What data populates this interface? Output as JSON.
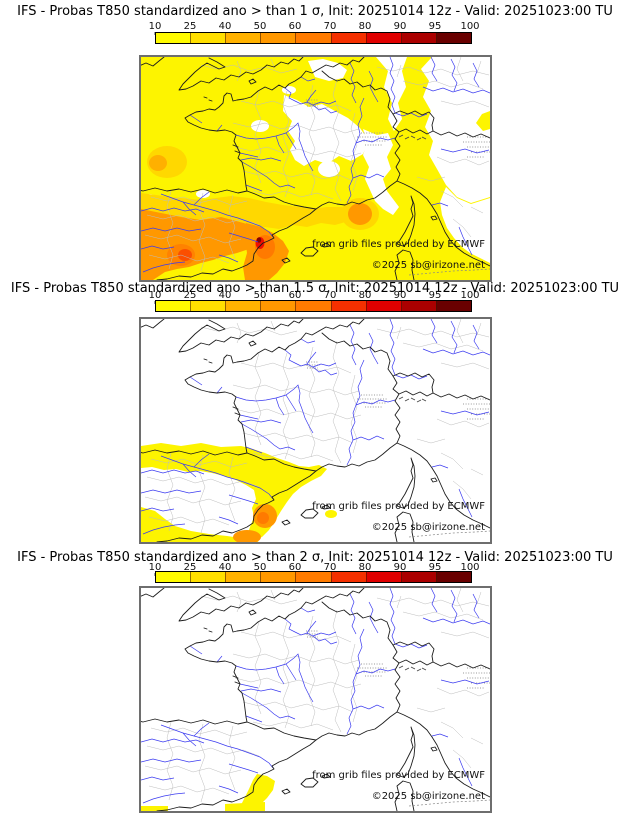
{
  "page": {
    "background": "#ffffff"
  },
  "panels": [
    {
      "id": "sigma-1",
      "title": "IFS - Probas T850  standardized ano > than 1 σ, Init: 20251014 12z - Valid: 20251023:00 TU",
      "threshold": "1 σ"
    },
    {
      "id": "sigma-1-5",
      "title": "IFS - Probas T850  standardized ano > than 1.5 σ, Init: 20251014 12z - Valid: 20251023:00 TU",
      "threshold": "1.5 σ"
    },
    {
      "id": "sigma-2",
      "title": "IFS - Probas T850  standardized ano > than 2 σ, Init: 20251014 12z - Valid: 20251023:00 TU",
      "threshold": "2 σ"
    }
  ],
  "colorbar": {
    "tick_labels": [
      "10",
      "25",
      "40",
      "50",
      "60",
      "70",
      "80",
      "90",
      "95",
      "100"
    ],
    "segment_colors": [
      "#fffb00",
      "#ffdf00",
      "#ffb200",
      "#ff9800",
      "#ff7b00",
      "#f53000",
      "#e00000",
      "#ab0000",
      "#690000"
    ]
  },
  "map": {
    "credit_line1": "from grib files provided by ECMWF",
    "credit_line2": "©2025 sb@irizone.net"
  }
}
